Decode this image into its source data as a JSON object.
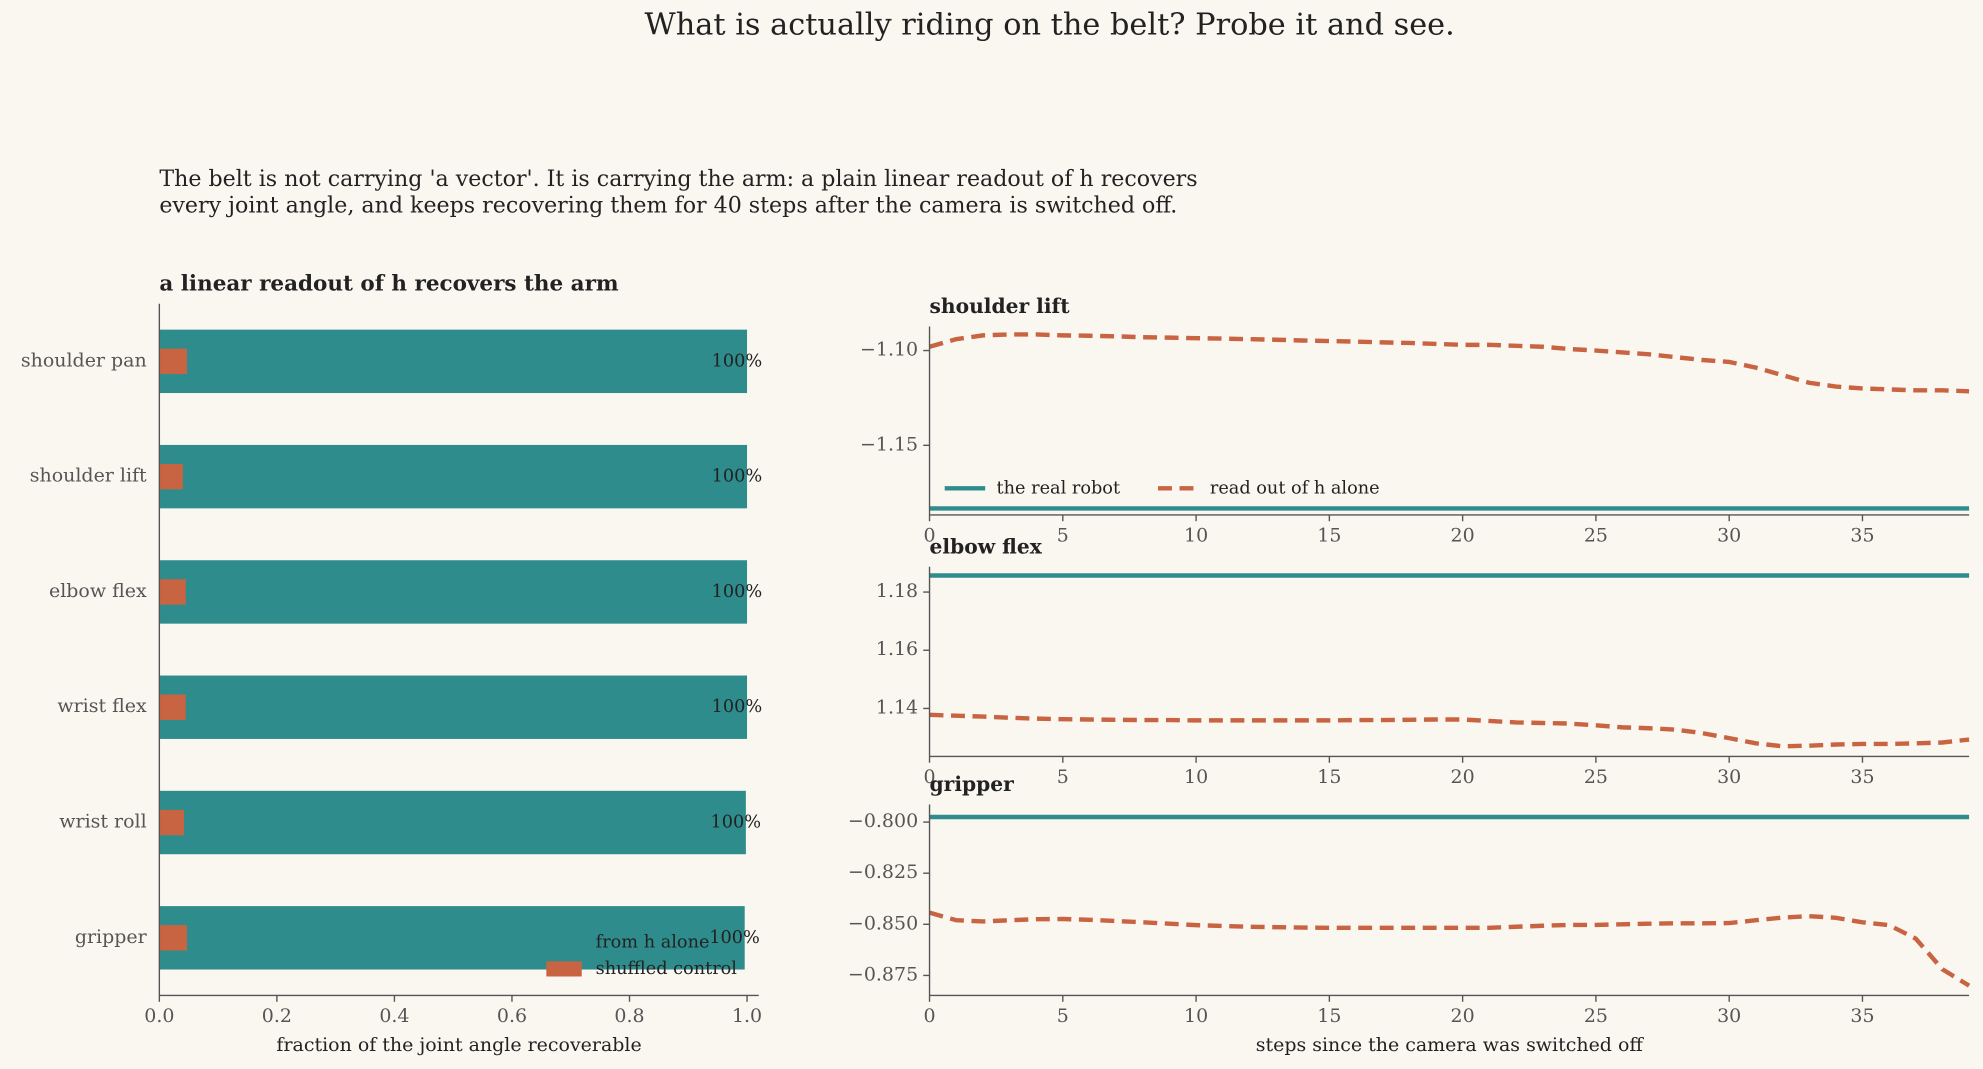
{
  "title": "What is actually riding on the belt? Probe it and see.",
  "subtitle": [
    "The belt is not carrying 'a vector'. It is carrying the arm: a plain linear readout of h recovers",
    "every joint angle, and keeps recovering them for 40 steps after the camera is switched off."
  ],
  "chart_data": [
    {
      "type": "bar",
      "orientation": "horizontal",
      "title": "a linear readout of h recovers the arm",
      "categories": [
        "shoulder pan",
        "shoulder lift",
        "elbow flex",
        "wrist flex",
        "wrist roll",
        "gripper"
      ],
      "series": [
        {
          "name": "from h alone",
          "color": "#2e8d8c",
          "values": [
            1.0,
            1.0,
            1.0,
            1.0,
            0.998,
            0.996
          ],
          "value_labels": [
            "100%",
            "100%",
            "100%",
            "100%",
            "100%",
            "100%"
          ]
        },
        {
          "name": "shuffled control",
          "color": "#c96442",
          "values": [
            0.047,
            0.04,
            0.045,
            0.045,
            0.042,
            0.047
          ]
        }
      ],
      "xlim": [
        0,
        1.02
      ],
      "xticks": [
        {
          "value": 0,
          "label": "0.0"
        },
        0.2,
        0.4,
        0.6,
        0.8,
        {
          "value": 1,
          "label": "1.0"
        }
      ],
      "xlabel": "fraction of the joint angle recoverable",
      "legend": "lower right"
    },
    {
      "type": "line",
      "title": "shoulder lift",
      "x": [
        0,
        1,
        2,
        3,
        4,
        5,
        6,
        7,
        8,
        9,
        10,
        11,
        12,
        13,
        14,
        15,
        16,
        17,
        18,
        19,
        20,
        21,
        22,
        23,
        24,
        25,
        26,
        27,
        28,
        29,
        30,
        31,
        32,
        33,
        34,
        35,
        36,
        37,
        38,
        39
      ],
      "series": [
        {
          "name": "the real robot",
          "color": "#2e8d8c",
          "linestyle": "solid",
          "values": [
            -1.1833,
            -1.1833,
            -1.1833,
            -1.1833,
            -1.1833,
            -1.1833,
            -1.1833,
            -1.1833,
            -1.1833,
            -1.1833,
            -1.1833,
            -1.1833,
            -1.1833,
            -1.1833,
            -1.1833,
            -1.1833,
            -1.1833,
            -1.1833,
            -1.1833,
            -1.1833,
            -1.1833,
            -1.1833,
            -1.1833,
            -1.1833,
            -1.1833,
            -1.1833,
            -1.1833,
            -1.1833,
            -1.1833,
            -1.1833,
            -1.1833,
            -1.1833,
            -1.1833,
            -1.1833,
            -1.1833,
            -1.1833,
            -1.1833,
            -1.1833,
            -1.1833,
            -1.1833
          ]
        },
        {
          "name": "read out of h alone",
          "color": "#c96442",
          "linestyle": "dashed",
          "values": [
            -1.098,
            -1.094,
            -1.092,
            -1.0915,
            -1.0915,
            -1.092,
            -1.0922,
            -1.0925,
            -1.093,
            -1.0932,
            -1.0935,
            -1.0937,
            -1.094,
            -1.0943,
            -1.0947,
            -1.095,
            -1.0953,
            -1.0957,
            -1.096,
            -1.0965,
            -1.097,
            -1.097,
            -1.0975,
            -1.098,
            -1.0992,
            -1.1,
            -1.101,
            -1.102,
            -1.1035,
            -1.105,
            -1.106,
            -1.109,
            -1.113,
            -1.117,
            -1.119,
            -1.12,
            -1.1205,
            -1.121,
            -1.121,
            -1.1215
          ]
        }
      ],
      "xlim": [
        0,
        39
      ],
      "xticks": [
        0,
        5,
        10,
        15,
        20,
        25,
        30,
        35
      ],
      "ylim": [
        -1.1867,
        -1.0873
      ],
      "yticks": [
        {
          "value": -1.15,
          "label": "−1.15"
        },
        {
          "value": -1.1,
          "label": "−1.10"
        }
      ],
      "legend": "lower left"
    },
    {
      "type": "line",
      "title": "elbow flex",
      "x": [
        0,
        1,
        2,
        3,
        4,
        5,
        6,
        7,
        8,
        9,
        10,
        11,
        12,
        13,
        14,
        15,
        16,
        17,
        18,
        19,
        20,
        21,
        22,
        23,
        24,
        25,
        26,
        27,
        28,
        29,
        30,
        31,
        32,
        33,
        34,
        35,
        36,
        37,
        38,
        39
      ],
      "series": [
        {
          "color": "#2e8d8c",
          "linestyle": "solid",
          "values": [
            1.1857,
            1.1857,
            1.1857,
            1.1857,
            1.1857,
            1.1857,
            1.1857,
            1.1857,
            1.1857,
            1.1857,
            1.1857,
            1.1857,
            1.1857,
            1.1857,
            1.1857,
            1.1857,
            1.1857,
            1.1857,
            1.1857,
            1.1857,
            1.1857,
            1.1857,
            1.1857,
            1.1857,
            1.1857,
            1.1857,
            1.1857,
            1.1857,
            1.1857,
            1.1857,
            1.1857,
            1.1857,
            1.1857,
            1.1857,
            1.1857,
            1.1857,
            1.1857,
            1.1857,
            1.1857,
            1.1857
          ]
        },
        {
          "color": "#c96442",
          "linestyle": "dashed",
          "values": [
            1.1378,
            1.1375,
            1.1372,
            1.1368,
            1.1365,
            1.1363,
            1.1362,
            1.1361,
            1.136,
            1.136,
            1.1359,
            1.1359,
            1.1359,
            1.1359,
            1.1359,
            1.1359,
            1.136,
            1.136,
            1.1361,
            1.1362,
            1.1362,
            1.1357,
            1.1352,
            1.135,
            1.1348,
            1.1342,
            1.1335,
            1.1332,
            1.1327,
            1.1315,
            1.1298,
            1.128,
            1.127,
            1.1272,
            1.1276,
            1.1278,
            1.1278,
            1.128,
            1.1283,
            1.1293
          ]
        }
      ],
      "xlim": [
        0,
        39
      ],
      "xticks": [
        0,
        5,
        10,
        15,
        20,
        25,
        30,
        35
      ],
      "ylim": [
        1.1235,
        1.1887
      ],
      "yticks": [
        1.14,
        1.16,
        1.18
      ]
    },
    {
      "type": "line",
      "title": "gripper",
      "x": [
        0,
        1,
        2,
        3,
        4,
        5,
        6,
        7,
        8,
        9,
        10,
        11,
        12,
        13,
        14,
        15,
        16,
        17,
        18,
        19,
        20,
        21,
        22,
        23,
        24,
        25,
        26,
        27,
        28,
        29,
        30,
        31,
        32,
        33,
        34,
        35,
        36,
        37,
        38,
        39
      ],
      "series": [
        {
          "color": "#2e8d8c",
          "linestyle": "solid",
          "values": [
            -0.7975,
            -0.7975,
            -0.7975,
            -0.7975,
            -0.7975,
            -0.7975,
            -0.7975,
            -0.7975,
            -0.7975,
            -0.7975,
            -0.7975,
            -0.7975,
            -0.7975,
            -0.7975,
            -0.7975,
            -0.7975,
            -0.7975,
            -0.7975,
            -0.7975,
            -0.7975,
            -0.7975,
            -0.7975,
            -0.7975,
            -0.7975,
            -0.7975,
            -0.7975,
            -0.7975,
            -0.7975,
            -0.7975,
            -0.7975,
            -0.7975,
            -0.7975,
            -0.7975,
            -0.7975,
            -0.7975,
            -0.7975,
            -0.7975,
            -0.7975,
            -0.7975,
            -0.7975
          ]
        },
        {
          "color": "#c96442",
          "linestyle": "dashed",
          "values": [
            -0.8443,
            -0.848,
            -0.8486,
            -0.848,
            -0.8475,
            -0.8474,
            -0.8478,
            -0.8484,
            -0.849,
            -0.8497,
            -0.8504,
            -0.8508,
            -0.8512,
            -0.8514,
            -0.8516,
            -0.8517,
            -0.8517,
            -0.8517,
            -0.8517,
            -0.8517,
            -0.8517,
            -0.8517,
            -0.8512,
            -0.8507,
            -0.8503,
            -0.8503,
            -0.85,
            -0.8497,
            -0.8495,
            -0.8495,
            -0.8494,
            -0.848,
            -0.8467,
            -0.846,
            -0.8468,
            -0.849,
            -0.8504,
            -0.857,
            -0.872,
            -0.88
          ]
        }
      ],
      "xlim": [
        0,
        39
      ],
      "xticks": [
        0,
        5,
        10,
        15,
        20,
        25,
        30,
        35
      ],
      "ylim": [
        -0.8848,
        -0.7914
      ],
      "yticks": [
        {
          "value": -0.8,
          "label": "−0.800"
        },
        {
          "value": -0.825,
          "label": "−0.825"
        },
        {
          "value": -0.85,
          "label": "−0.850"
        },
        {
          "value": -0.875,
          "label": "−0.875"
        }
      ],
      "xlabel": "steps since the camera was switched off"
    }
  ]
}
